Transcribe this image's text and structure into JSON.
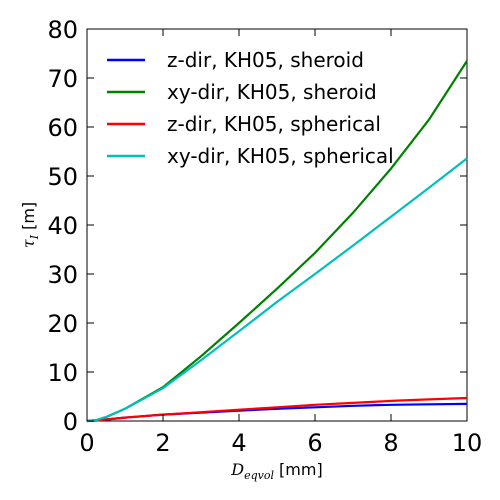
{
  "chart_data": {
    "type": "line",
    "xlabel": {
      "symbol": "D",
      "subscript": "eqvol",
      "unit": "[mm]"
    },
    "ylabel": {
      "symbol": "τ",
      "subscript": "I",
      "unit": "[m]"
    },
    "xlim": [
      0,
      10
    ],
    "ylim": [
      0,
      80
    ],
    "xticks": [
      "0",
      "2",
      "4",
      "6",
      "8",
      "10"
    ],
    "yticks": [
      "0",
      "10",
      "20",
      "30",
      "40",
      "50",
      "60",
      "70",
      "80"
    ],
    "grid": false,
    "legend_position": "top-left",
    "series": [
      {
        "name": "z-dir, KH05, sheroid",
        "color": "#0000ff",
        "x": [
          0,
          0.25,
          0.5,
          1,
          2,
          3,
          4,
          5,
          6,
          7,
          8,
          9,
          10
        ],
        "y": [
          0,
          0.1,
          0.3,
          0.7,
          1.3,
          1.7,
          2.1,
          2.5,
          2.8,
          3.1,
          3.3,
          3.4,
          3.5
        ]
      },
      {
        "name": "xy-dir, KH05, sheroid",
        "color": "#008000",
        "x": [
          0,
          0.25,
          0.5,
          1,
          2,
          3,
          4,
          5,
          6,
          7,
          8,
          9,
          10
        ],
        "y": [
          0,
          0.2,
          0.8,
          2.5,
          6.9,
          13.2,
          20,
          27,
          34.3,
          42.5,
          51.5,
          61.5,
          73.5
        ]
      },
      {
        "name": "z-dir, KH05, spherical",
        "color": "#ff0000",
        "x": [
          0,
          0.25,
          0.5,
          1,
          2,
          3,
          4,
          5,
          6,
          7,
          8,
          9,
          10
        ],
        "y": [
          0,
          0.1,
          0.3,
          0.7,
          1.3,
          1.8,
          2.3,
          2.8,
          3.3,
          3.7,
          4.1,
          4.4,
          4.7
        ]
      },
      {
        "name": "xy-dir, KH05, spherical",
        "color": "#00bfbf",
        "x": [
          0,
          0.25,
          0.5,
          1,
          2,
          3,
          4,
          5,
          6,
          7,
          8,
          9,
          10
        ],
        "y": [
          0,
          0.2,
          0.8,
          2.5,
          6.7,
          12.4,
          18.3,
          24.3,
          30,
          35.8,
          41.7,
          47.6,
          53.6
        ]
      }
    ]
  }
}
